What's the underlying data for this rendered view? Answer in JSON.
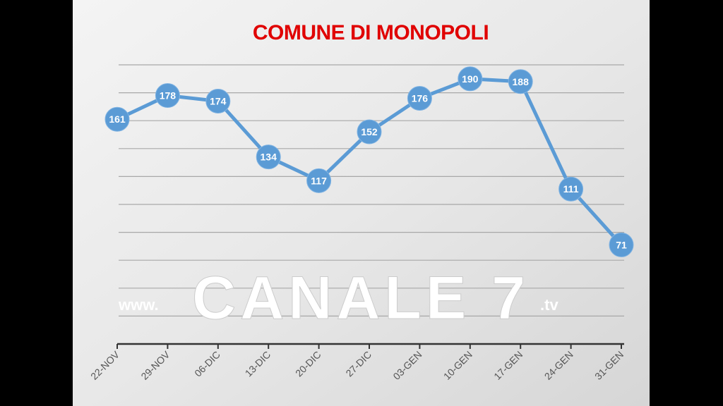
{
  "watermark": {
    "prefix": "www.",
    "brand": "CANALE 7",
    "suffix": ".tv"
  },
  "colors": {
    "line": "#5b9bd5",
    "title": "#e00000",
    "background": "#e4e4e4",
    "letterbox": "#000000"
  },
  "chart_data": {
    "type": "line",
    "title": "COMUNE DI MONOPOLI",
    "xlabel": "",
    "ylabel": "",
    "categories": [
      "22-NOV",
      "29-NOV",
      "06-DIC",
      "13-DIC",
      "20-DIC",
      "27-DIC",
      "03-GEN",
      "10-GEN",
      "17-GEN",
      "24-GEN",
      "31-GEN"
    ],
    "values": [
      161,
      178,
      174,
      134,
      117,
      152,
      176,
      190,
      188,
      111,
      71
    ],
    "ylim": [
      0,
      200
    ],
    "ytick_step": 20,
    "y_tick_labels_shown": false,
    "grid": true,
    "data_labels": true,
    "legend": "none"
  }
}
